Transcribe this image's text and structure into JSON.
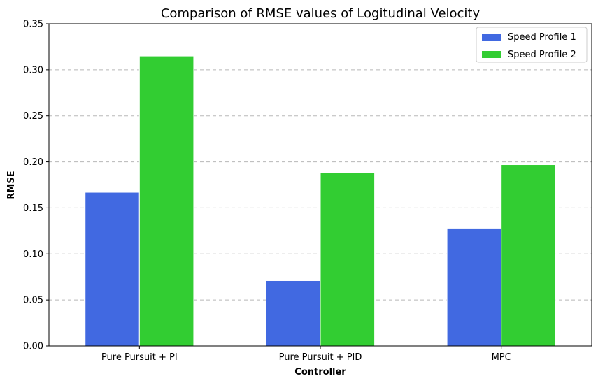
{
  "chart_data": {
    "type": "bar",
    "title": "Comparison of RMSE values of Logitudinal Velocity",
    "xlabel": "Controller",
    "ylabel": "RMSE",
    "categories": [
      "Pure Pursuit + PI",
      "Pure Pursuit + PID",
      "MPC"
    ],
    "series": [
      {
        "name": "Speed Profile 1",
        "color": "#4169e1",
        "values": [
          0.167,
          0.071,
          0.128
        ]
      },
      {
        "name": "Speed Profile 2",
        "color": "#32cd32",
        "values": [
          0.315,
          0.188,
          0.197
        ]
      }
    ],
    "ylim": [
      0,
      0.35
    ],
    "yticks": [
      "0.00",
      "0.05",
      "0.10",
      "0.15",
      "0.20",
      "0.25",
      "0.30",
      "0.35"
    ],
    "grid": "y-dashed",
    "legend_position": "top-right"
  }
}
